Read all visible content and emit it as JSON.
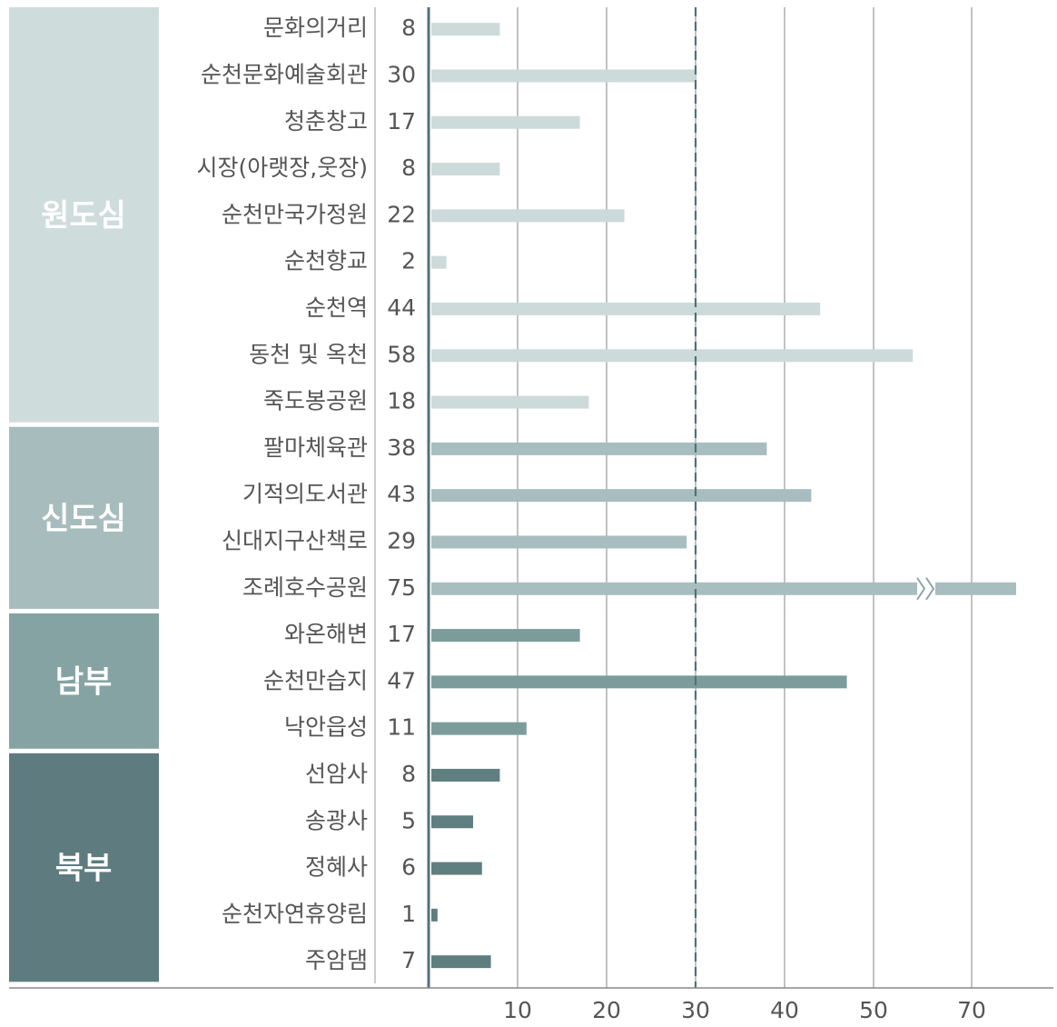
{
  "chart_data": {
    "type": "bar",
    "groups": [
      {
        "name": "원도심",
        "color": "#cfdcdc",
        "bar_color": "#cddada",
        "categories": [
          "문화의거리",
          "순천문화예술회관",
          "청춘창고",
          "시장(아랫장,웃장)",
          "순천만국가정원",
          "순천향교",
          "순천역",
          "동천 및 옥천",
          "죽도봉공원"
        ],
        "values": [
          8,
          30,
          17,
          8,
          22,
          2,
          44,
          58,
          18
        ]
      },
      {
        "name": "신도심",
        "color": "#a7bcbd",
        "bar_color": "#a8bdbf",
        "categories": [
          "팔마체육관",
          "기적의도서관",
          "신대지구산책로",
          "조례호수공원"
        ],
        "values": [
          38,
          43,
          29,
          75
        ]
      },
      {
        "name": "남부",
        "color": "#86a3a3",
        "bar_color": "#7c9c9c",
        "categories": [
          "와온해변",
          "순천만습지",
          "낙안읍성"
        ],
        "values": [
          17,
          47,
          11
        ]
      },
      {
        "name": "북부",
        "color": "#5e7c80",
        "bar_color": "#5f7e80",
        "categories": [
          "선암사",
          "송광사",
          "정혜사",
          "순천자연휴양림",
          "주암댐"
        ],
        "values": [
          8,
          5,
          6,
          1,
          7
        ]
      }
    ],
    "xlim": [
      0,
      75
    ],
    "xticks": [
      10,
      20,
      30,
      40,
      50,
      70
    ],
    "axis_break": [
      50,
      70
    ],
    "reference_line": 30,
    "grid": true
  }
}
